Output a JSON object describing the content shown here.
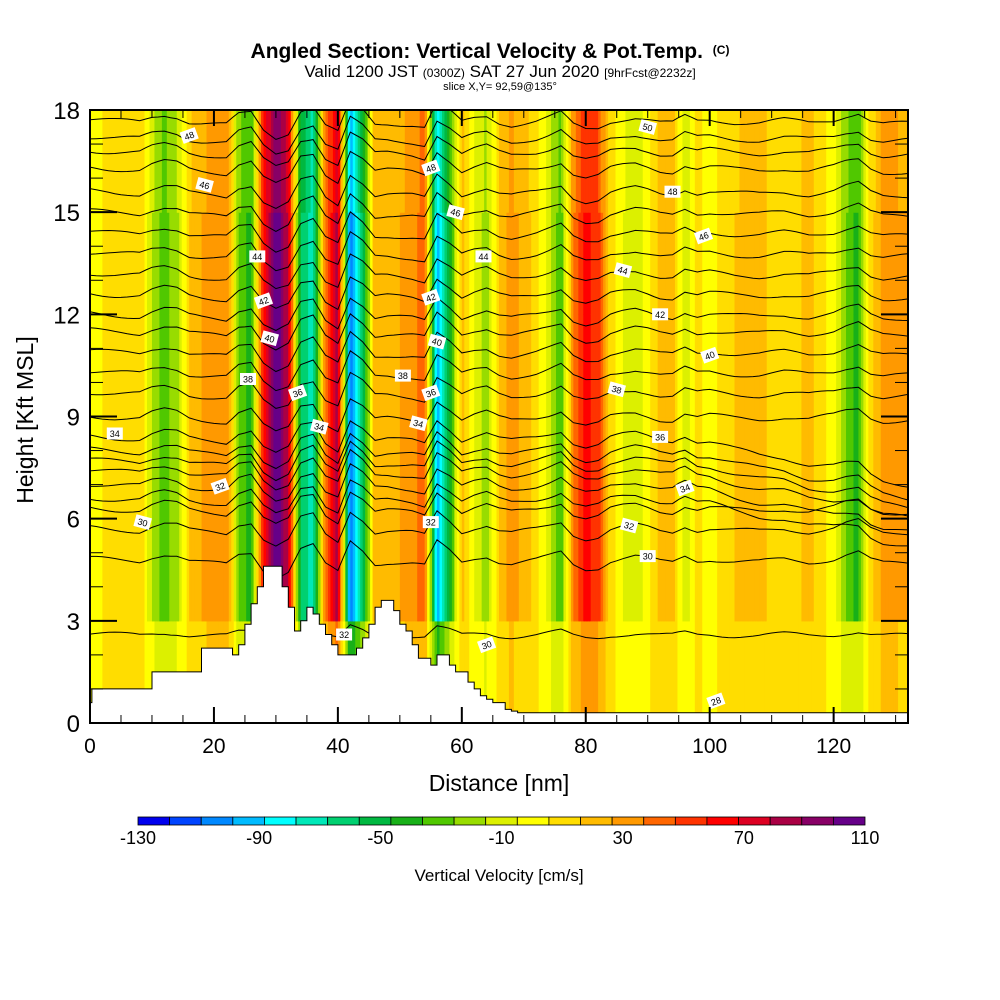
{
  "chart_data": {
    "type": "heatmap",
    "title": "Angled Section: Vertical Velocity & Pot.Temp.",
    "title_suffix": "(C)",
    "subtitle_parts": [
      "Valid 1200 JST",
      "(0300Z)",
      "SAT 27 Jun 2020",
      "[9hrFcst@2232z]"
    ],
    "slice_text": "slice X,Y= 92,59@135°",
    "xlabel": "Distance [nm]",
    "ylabel": "Height [Kft MSL]",
    "xlim": [
      0,
      132
    ],
    "ylim": [
      0,
      18
    ],
    "x_ticks": [
      "0",
      "20",
      "40",
      "60",
      "80",
      "100",
      "120"
    ],
    "x_tick_values": [
      0,
      20,
      40,
      60,
      80,
      100,
      120
    ],
    "y_ticks": [
      "0",
      "3",
      "6",
      "9",
      "12",
      "15",
      "18"
    ],
    "y_tick_values": [
      0,
      3,
      6,
      9,
      12,
      15,
      18
    ],
    "colorbar": {
      "label": "Vertical Velocity [cm/s]",
      "min": -130,
      "max": 110,
      "step": 10,
      "tick_labels": [
        "-130",
        "-90",
        "-50",
        "-10",
        "30",
        "70",
        "110"
      ],
      "tick_values": [
        -130,
        -90,
        -50,
        -10,
        30,
        70,
        110
      ],
      "colors": [
        "#0000ee",
        "#0044ff",
        "#0088ff",
        "#00bbff",
        "#00ffff",
        "#00e8b8",
        "#00d070",
        "#00b840",
        "#18b018",
        "#50c800",
        "#98dc00",
        "#dcf000",
        "#ffff00",
        "#ffdd00",
        "#ffbb00",
        "#ff9900",
        "#ff6600",
        "#ff3300",
        "#ff0000",
        "#dd0022",
        "#aa0044",
        "#880066",
        "#660088"
      ]
    },
    "velocity_columns": {
      "description_units": "cm/s, approximate dominant vertical velocity by distance (nm)",
      "x": [
        0,
        4,
        8,
        10,
        12,
        14,
        16,
        18,
        20,
        22,
        24,
        26,
        28,
        30,
        32,
        34,
        36,
        38,
        40,
        42,
        44,
        46,
        48,
        50,
        52,
        54,
        56,
        58,
        60,
        62,
        64,
        66,
        68,
        70,
        72,
        74,
        76,
        78,
        80,
        82,
        84,
        86,
        88,
        90,
        92,
        94,
        96,
        98,
        100,
        104,
        108,
        112,
        116,
        120,
        122,
        124,
        126,
        128,
        132
      ],
      "values": [
        -5,
        5,
        10,
        -20,
        -35,
        -25,
        10,
        20,
        25,
        30,
        -30,
        -45,
        55,
        100,
        70,
        -60,
        -80,
        35,
        75,
        -110,
        -60,
        20,
        15,
        20,
        25,
        40,
        -100,
        -50,
        15,
        -10,
        -25,
        10,
        25,
        15,
        5,
        -15,
        -40,
        30,
        55,
        45,
        5,
        -10,
        -20,
        -5,
        15,
        20,
        -20,
        5,
        -5,
        10,
        15,
        0,
        15,
        -5,
        -30,
        -45,
        5,
        25,
        20
      ]
    },
    "isentropes": {
      "units": "°C (potential temperature)",
      "levels": [
        28,
        30,
        32,
        34,
        36,
        38,
        40,
        42,
        44,
        46,
        48,
        50
      ],
      "labels": [
        {
          "text": "48",
          "x": 16,
          "y": 17.25
        },
        {
          "text": "46",
          "x": 18.5,
          "y": 15.8
        },
        {
          "text": "44",
          "x": 27,
          "y": 13.7
        },
        {
          "text": "42",
          "x": 28,
          "y": 12.4
        },
        {
          "text": "40",
          "x": 29,
          "y": 11.3
        },
        {
          "text": "38",
          "x": 25.5,
          "y": 10.1
        },
        {
          "text": "36",
          "x": 33.5,
          "y": 9.7
        },
        {
          "text": "34",
          "x": 37,
          "y": 8.7
        },
        {
          "text": "34",
          "x": 4,
          "y": 8.5
        },
        {
          "text": "32",
          "x": 21,
          "y": 6.95
        },
        {
          "text": "30",
          "x": 8.5,
          "y": 5.9
        },
        {
          "text": "32",
          "x": 41,
          "y": 2.6
        },
        {
          "text": "48",
          "x": 55,
          "y": 16.3
        },
        {
          "text": "46",
          "x": 59,
          "y": 15.0
        },
        {
          "text": "44",
          "x": 63.5,
          "y": 13.7
        },
        {
          "text": "42",
          "x": 55,
          "y": 12.5
        },
        {
          "text": "40",
          "x": 56,
          "y": 11.2
        },
        {
          "text": "38",
          "x": 50.5,
          "y": 10.2
        },
        {
          "text": "36",
          "x": 55,
          "y": 9.7
        },
        {
          "text": "34",
          "x": 53,
          "y": 8.8
        },
        {
          "text": "32",
          "x": 55,
          "y": 5.9
        },
        {
          "text": "30",
          "x": 64,
          "y": 2.3
        },
        {
          "text": "50",
          "x": 90,
          "y": 17.5
        },
        {
          "text": "48",
          "x": 94,
          "y": 15.6
        },
        {
          "text": "46",
          "x": 99,
          "y": 14.3
        },
        {
          "text": "44",
          "x": 86,
          "y": 13.3
        },
        {
          "text": "42",
          "x": 92,
          "y": 12.0
        },
        {
          "text": "40",
          "x": 100,
          "y": 10.8
        },
        {
          "text": "38",
          "x": 85,
          "y": 9.8
        },
        {
          "text": "36",
          "x": 92,
          "y": 8.4
        },
        {
          "text": "34",
          "x": 96,
          "y": 6.9
        },
        {
          "text": "32",
          "x": 87,
          "y": 5.8
        },
        {
          "text": "30",
          "x": 90,
          "y": 4.9
        },
        {
          "text": "28",
          "x": 101,
          "y": 0.65
        }
      ]
    },
    "terrain": {
      "units": "kft",
      "x": [
        0,
        0.3,
        1,
        5,
        10,
        13,
        18,
        22,
        23,
        24,
        25,
        26,
        27,
        28,
        29,
        31,
        32,
        33,
        34,
        35,
        36,
        37,
        38,
        39,
        40,
        43,
        44,
        45,
        46,
        47,
        48,
        49,
        50,
        51,
        52,
        53,
        55,
        56,
        57,
        58,
        59,
        60,
        61,
        62,
        63,
        64,
        65,
        67,
        68,
        69,
        71,
        72,
        132
      ],
      "y": [
        0.6,
        1.0,
        1.0,
        1.0,
        1.5,
        1.5,
        2.2,
        2.2,
        2.0,
        2.3,
        2.9,
        3.5,
        4.0,
        4.6,
        4.6,
        4.0,
        3.4,
        2.7,
        3.0,
        3.4,
        3.2,
        2.9,
        2.6,
        2.3,
        2.0,
        2.2,
        2.5,
        2.9,
        3.4,
        3.6,
        3.6,
        3.3,
        2.9,
        2.7,
        2.3,
        1.9,
        1.7,
        2.0,
        2.0,
        1.7,
        1.5,
        1.5,
        1.2,
        1.0,
        0.8,
        0.7,
        0.6,
        0.4,
        0.35,
        0.3,
        0.3,
        0.3,
        0.3
      ]
    }
  }
}
